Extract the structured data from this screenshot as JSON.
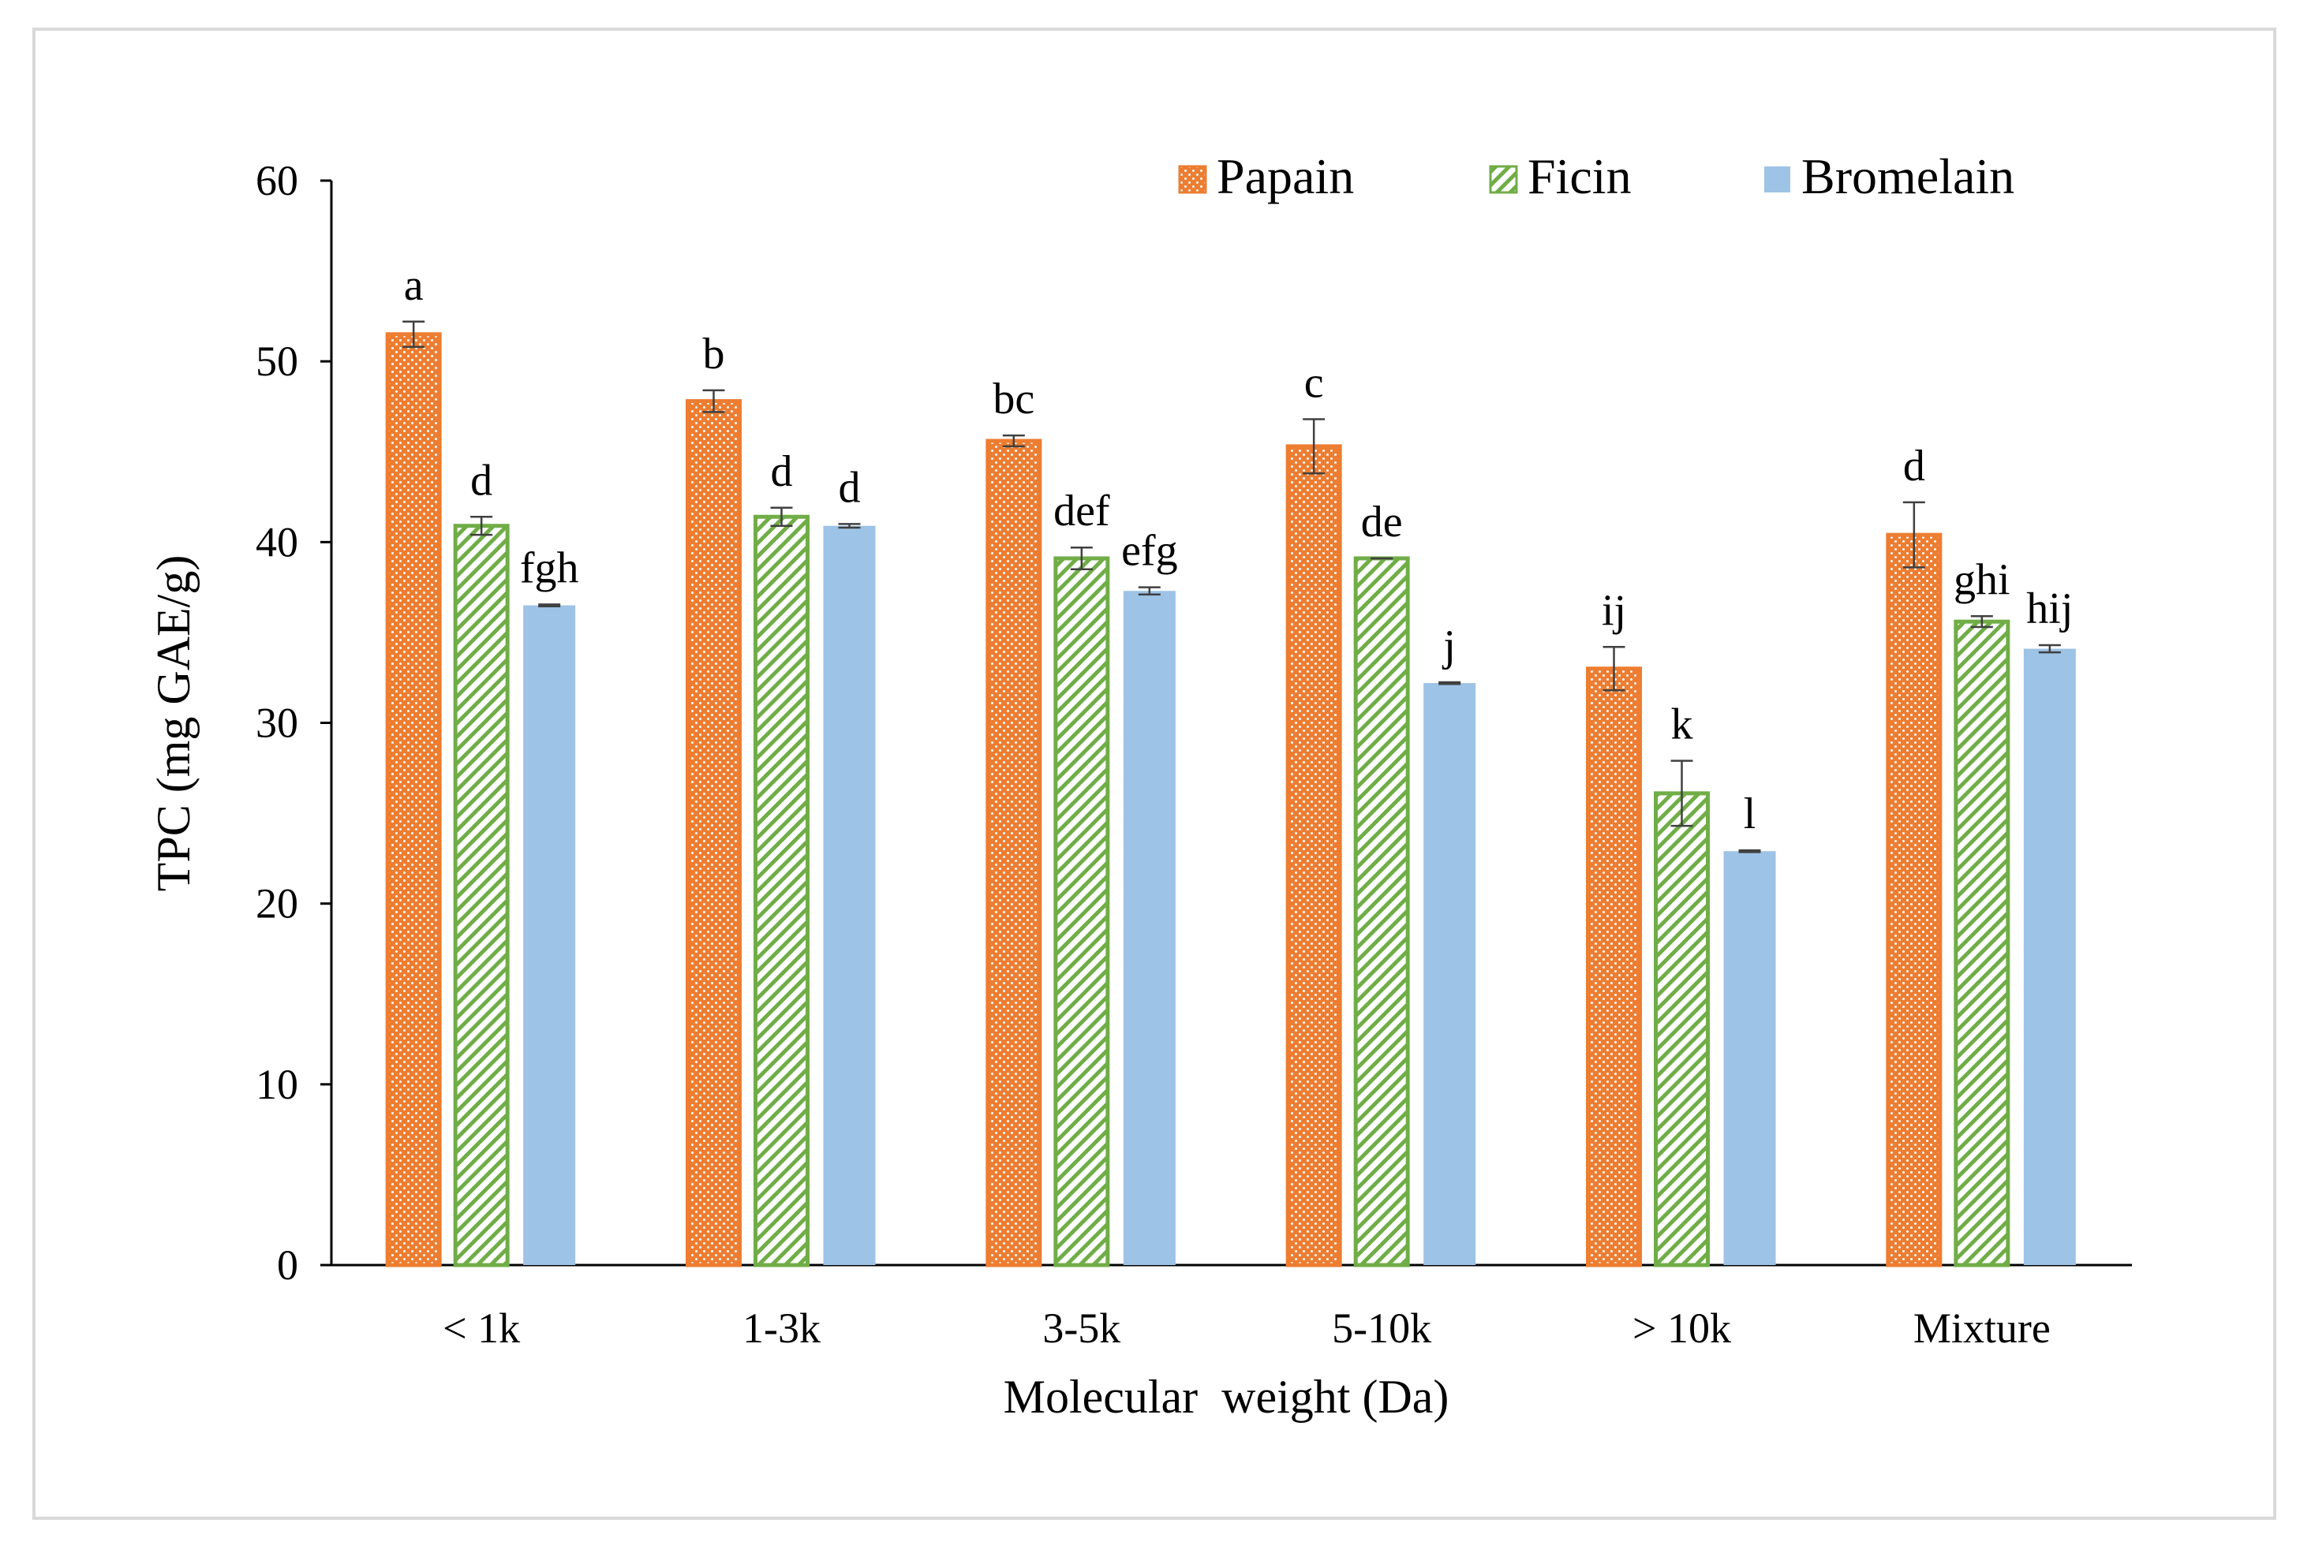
{
  "chart_data": {
    "type": "bar",
    "title": "",
    "xlabel": "Molecular  weight (Da)",
    "ylabel": "TPC (mg GAE/g)",
    "ylim": [
      0,
      60
    ],
    "yticks": [
      0,
      10,
      20,
      30,
      40,
      50,
      60
    ],
    "ytick_labels": [
      "0",
      "10",
      "20",
      "30",
      "40",
      "50",
      "60"
    ],
    "grid": false,
    "legend_position": "top-right",
    "categories": [
      "< 1k",
      "1-3k",
      "3-5k",
      "5-10k",
      "> 10k",
      "Mixture"
    ],
    "series": [
      {
        "name": "Papain",
        "color": "#ED7D31",
        "pattern": "dotted",
        "values": [
          51.5,
          47.8,
          45.6,
          45.3,
          33.0,
          40.4
        ],
        "errors": [
          0.7,
          0.6,
          0.3,
          1.5,
          1.2,
          1.8
        ],
        "labels": [
          "a",
          "b",
          "bc",
          "c",
          "ij",
          "d"
        ]
      },
      {
        "name": "Ficin",
        "color": "#70AD47",
        "pattern": "hatched",
        "values": [
          40.9,
          41.4,
          39.1,
          39.1,
          26.1,
          35.6
        ],
        "errors": [
          0.5,
          0.5,
          0.6,
          0.0,
          1.8,
          0.3
        ],
        "labels": [
          "d",
          "d",
          "def",
          "de",
          "k",
          "ghi"
        ]
      },
      {
        "name": "Bromelain",
        "color": "#9DC3E6",
        "pattern": "solid",
        "values": [
          36.5,
          40.9,
          37.3,
          32.2,
          22.9,
          34.1
        ],
        "errors": [
          0.05,
          0.1,
          0.2,
          0.05,
          0.05,
          0.2
        ],
        "labels": [
          "fgh",
          "d",
          "efg",
          "j",
          "l",
          "hij"
        ]
      }
    ]
  }
}
